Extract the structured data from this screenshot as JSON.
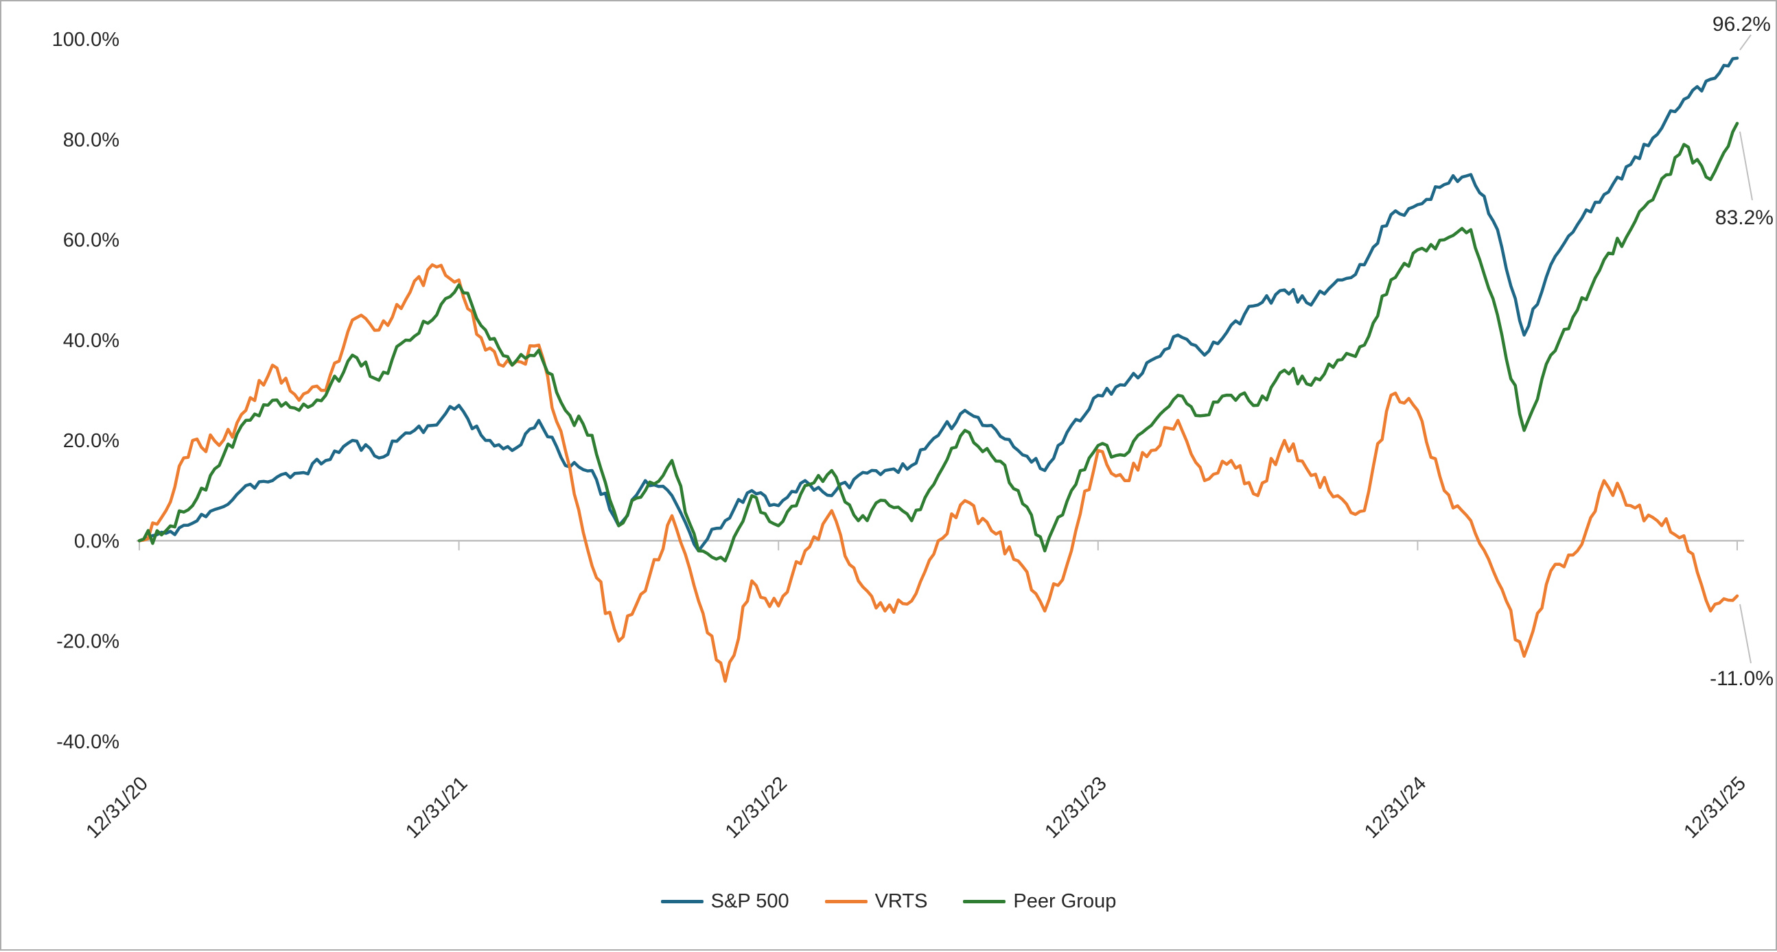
{
  "chart_data": {
    "type": "line",
    "title": "",
    "x_ticks": [
      "12/31/20",
      "12/31/21",
      "12/31/22",
      "12/31/23",
      "12/31/24",
      "12/31/25"
    ],
    "y_tick_labels": [
      "100.0%",
      "80.0%",
      "60.0%",
      "40.0%",
      "20.0%",
      "0.0%",
      "-20.0%",
      "-40.0%"
    ],
    "y_tick_values": [
      100,
      80,
      60,
      40,
      20,
      0,
      -20,
      -40
    ],
    "ylim": [
      -40,
      100
    ],
    "x_unit": "months",
    "x_range_months": 60,
    "grid": "zero-line-only",
    "legend_position": "bottom",
    "series": [
      {
        "name": "S&P 500",
        "color": "#1F6787",
        "end_label": "96.2%",
        "end_value": 96.2,
        "values": [
          0,
          1.5,
          3.5,
          6.5,
          11,
          12,
          13.5,
          16,
          20,
          16.5,
          21.5,
          23,
          27,
          20,
          18,
          24,
          15,
          14,
          3,
          12,
          9,
          -2,
          4,
          10,
          7,
          12,
          9,
          13,
          14,
          15,
          21,
          26,
          23,
          18,
          14,
          23,
          29,
          31,
          36,
          41,
          37,
          43,
          47,
          50,
          47,
          52,
          55,
          65,
          67,
          71,
          73,
          62,
          41,
          55,
          63,
          69,
          75,
          81,
          88,
          92,
          96.2
        ]
      },
      {
        "name": "VRTS",
        "color": "#ED7D31",
        "end_label": "-11.0%",
        "end_value": -11.0,
        "values": [
          0,
          6,
          20,
          19,
          26,
          35,
          28,
          30,
          44,
          42,
          48,
          55,
          52,
          38,
          35,
          39,
          18,
          -5,
          -20,
          -10,
          5,
          -12,
          -28,
          -8,
          -13,
          -2,
          6,
          -8,
          -14,
          -12,
          0,
          8,
          2,
          -4,
          -14,
          -2,
          18,
          12,
          18,
          24,
          12,
          16,
          9,
          20,
          13,
          9,
          6,
          29,
          26,
          10,
          4,
          -8,
          -23,
          -6,
          -2,
          12,
          7,
          4,
          1,
          -14,
          -11.0
        ]
      },
      {
        "name": "Peer Group",
        "color": "#2E7D32",
        "end_label": "83.2%",
        "end_value": 83.2,
        "values": [
          0,
          2,
          7,
          15,
          24,
          28,
          26,
          29,
          37,
          32,
          40,
          44,
          51,
          42,
          35,
          38,
          26,
          21,
          3,
          10,
          16,
          -2,
          -4,
          9,
          3,
          11,
          14,
          4,
          8,
          4,
          13,
          22,
          17,
          10,
          -2,
          10,
          19,
          17,
          23,
          29,
          25,
          29,
          27,
          34,
          31,
          36,
          39,
          52,
          58,
          60,
          62,
          45,
          22,
          37,
          46,
          56,
          62,
          70,
          79,
          72,
          83.2
        ]
      }
    ]
  },
  "colors": {
    "background": "#FFFFFF",
    "border": "#ACACAC",
    "axis_text": "#262626",
    "grid": "#BFBFBF"
  }
}
